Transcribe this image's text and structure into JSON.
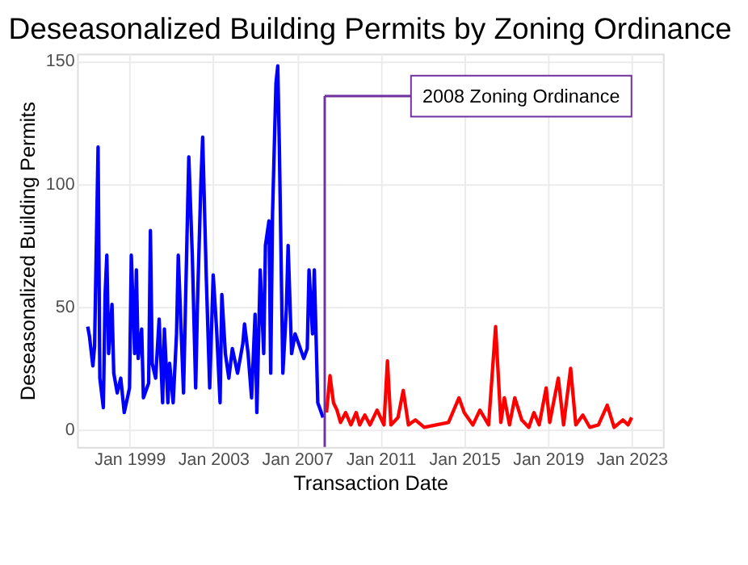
{
  "chart_data": {
    "type": "line",
    "title": "Deseasonalized Building Permits by Zoning Ordinance",
    "xlabel": "Transaction Date",
    "ylabel": "Deseasonalized Building Permits",
    "series": [
      {
        "color": "#0000ff",
        "x": [
          "1997-01",
          "1997-02",
          "1997-04",
          "1997-05",
          "1997-07",
          "1997-08",
          "1997-10",
          "1997-11",
          "1997-12",
          "1998-01",
          "1998-03",
          "1998-04",
          "1998-06",
          "1998-08",
          "1998-10",
          "1999-01",
          "1999-02",
          "1999-04",
          "1999-05",
          "1999-06",
          "1999-08",
          "1999-09",
          "1999-12",
          "2000-01",
          "2000-02",
          "2000-04",
          "2000-06",
          "2000-08",
          "2000-09",
          "2000-11",
          "2000-12",
          "2001-02",
          "2001-04",
          "2001-05",
          "2001-08",
          "2001-10",
          "2001-11",
          "2002-01",
          "2002-03",
          "2002-04",
          "2002-06",
          "2002-07",
          "2002-09",
          "2002-11",
          "2003-01",
          "2003-03",
          "2003-05",
          "2003-06",
          "2003-08",
          "2003-10",
          "2003-12",
          "2004-03",
          "2004-06",
          "2004-07",
          "2004-09",
          "2004-11",
          "2005-01",
          "2005-02",
          "2005-04",
          "2005-06",
          "2005-07",
          "2005-09",
          "2005-10",
          "2005-11",
          "2006-01",
          "2006-02",
          "2006-03",
          "2006-05",
          "2006-07",
          "2006-08",
          "2006-10",
          "2006-12",
          "2007-02",
          "2007-05",
          "2007-07",
          "2007-08",
          "2007-10",
          "2007-11",
          "2008-01",
          "2008-02",
          "2008-04"
        ],
        "values": [
          42,
          38,
          26,
          34,
          115,
          21,
          9,
          55,
          71,
          31,
          51,
          23,
          15,
          21,
          7,
          17,
          71,
          31,
          65,
          29,
          41,
          13,
          19,
          81,
          27,
          21,
          45,
          11,
          41,
          11,
          27,
          11,
          39,
          71,
          15,
          79,
          111,
          71,
          17,
          51,
          101,
          119,
          63,
          17,
          63,
          41,
          11,
          55,
          31,
          21,
          33,
          23,
          35,
          43,
          31,
          13,
          47,
          7,
          65,
          31,
          75,
          85,
          23,
          87,
          141,
          148,
          115,
          23,
          49,
          75,
          31,
          39,
          35,
          29,
          33,
          65,
          39,
          65,
          11,
          9,
          5
        ]
      },
      {
        "color": "#ff0000",
        "x": [
          "2008-06",
          "2008-08",
          "2008-10",
          "2008-12",
          "2009-02",
          "2009-05",
          "2009-08",
          "2009-11",
          "2010-01",
          "2010-04",
          "2010-07",
          "2010-11",
          "2011-03",
          "2011-05",
          "2011-07",
          "2011-11",
          "2012-02",
          "2012-05",
          "2012-09",
          "2013-02",
          "2013-09",
          "2014-04",
          "2014-10",
          "2015-01",
          "2015-06",
          "2015-10",
          "2016-03",
          "2016-07",
          "2016-10",
          "2016-12",
          "2017-03",
          "2017-06",
          "2017-10",
          "2018-02",
          "2018-05",
          "2018-08",
          "2018-12",
          "2019-02",
          "2019-07",
          "2019-10",
          "2020-02",
          "2020-05",
          "2020-09",
          "2021-01",
          "2021-06",
          "2021-11",
          "2022-03",
          "2022-08",
          "2022-11",
          "2023-01"
        ],
        "values": [
          7,
          22,
          11,
          8,
          3,
          7,
          2,
          7,
          2,
          6,
          2,
          8,
          2,
          28,
          2,
          5,
          16,
          2,
          4,
          1,
          2,
          3,
          13,
          7,
          2,
          8,
          2,
          42,
          3,
          13,
          2,
          13,
          4,
          1,
          7,
          2,
          17,
          3,
          21,
          2,
          25,
          2,
          6,
          1,
          2,
          10,
          1,
          4,
          2,
          5
        ]
      }
    ],
    "xlim": [
      "1996-07",
      "2024-07"
    ],
    "xticks": [
      {
        "value": "1999-01",
        "label": "Jan 1999"
      },
      {
        "value": "2003-01",
        "label": "Jan 2003"
      },
      {
        "value": "2007-01",
        "label": "Jan 2007"
      },
      {
        "value": "2011-01",
        "label": "Jan 2011"
      },
      {
        "value": "2015-01",
        "label": "Jan 2015"
      },
      {
        "value": "2019-01",
        "label": "Jan 2019"
      },
      {
        "value": "2023-01",
        "label": "Jan 2023"
      }
    ],
    "ylim": [
      -7,
      153
    ],
    "yticks": [
      0,
      50,
      100,
      150
    ],
    "ref_lines": [
      {
        "axis": "x",
        "value": "2008-05",
        "label": "2008 Zoning Ordinance",
        "color": "#7030a0"
      }
    ],
    "grid": true
  }
}
